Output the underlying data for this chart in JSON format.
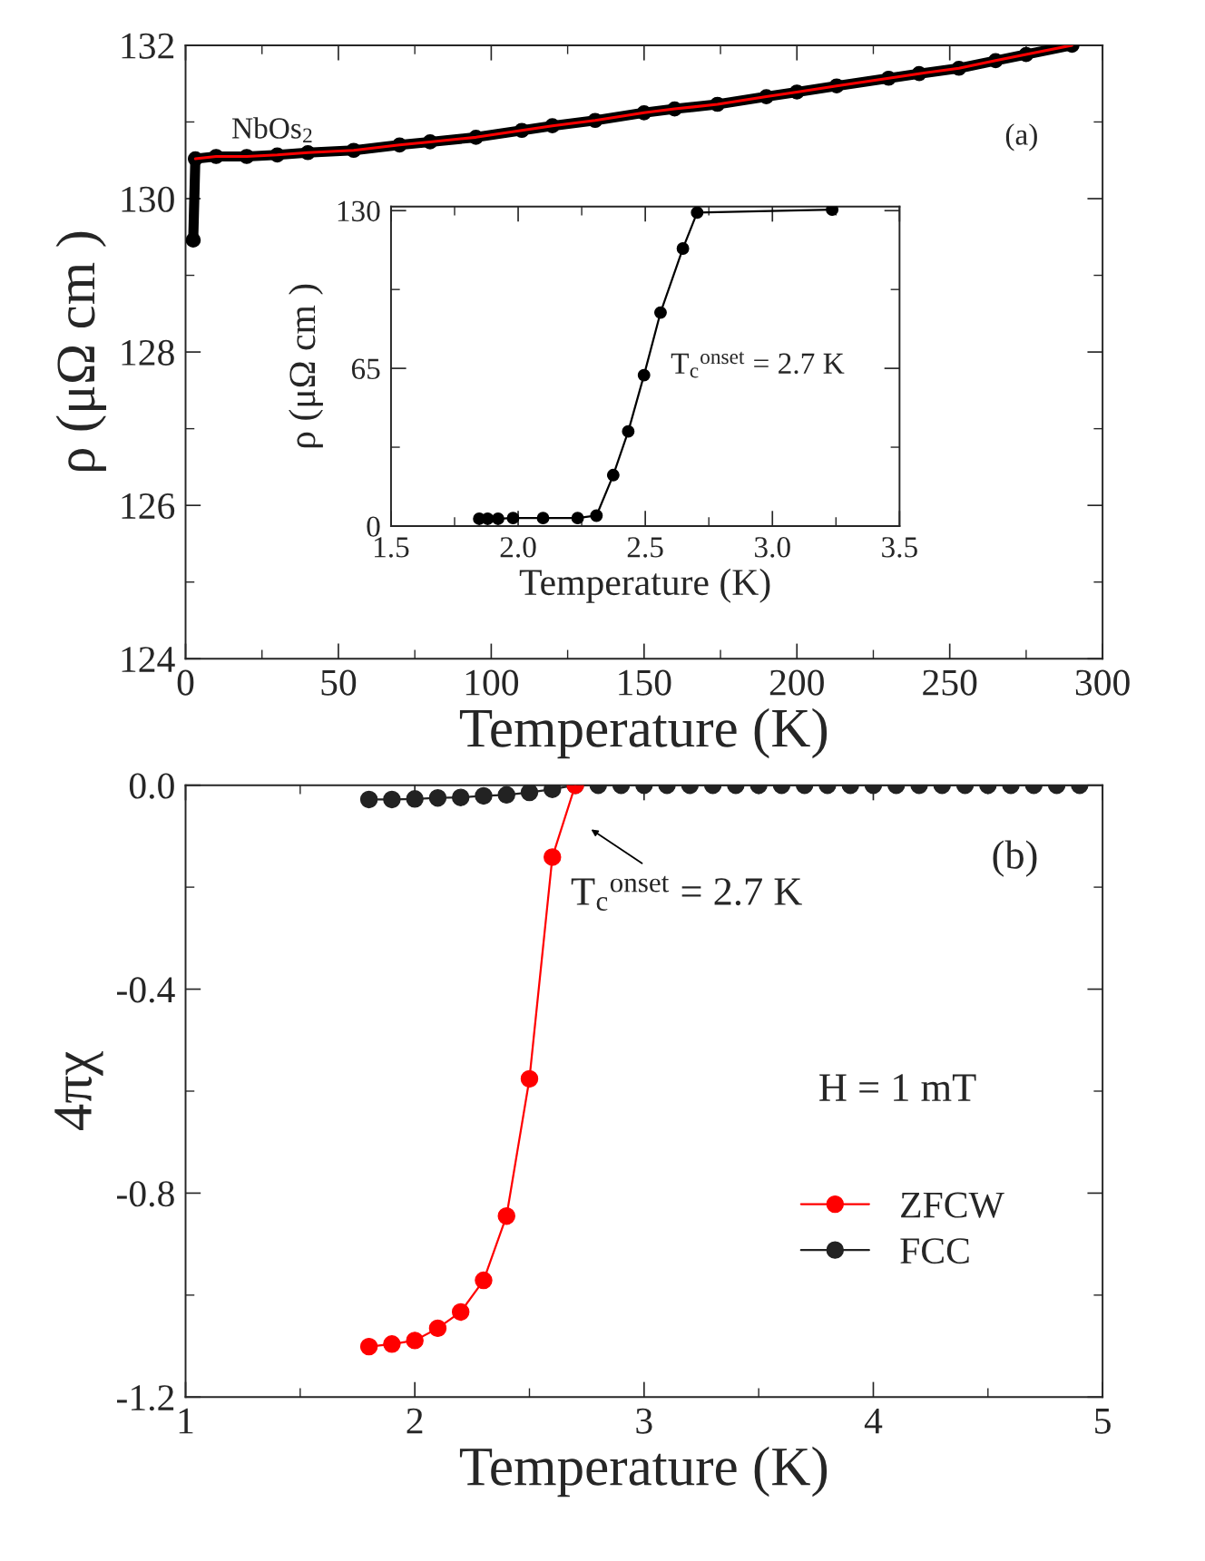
{
  "chart_data": [
    {
      "type": "line",
      "xlabel": "Temperature (K)",
      "ylabel": "ρ (μΩ cm )",
      "xlim": [
        0,
        300
      ],
      "xticks": [
        0,
        50,
        100,
        150,
        200,
        250,
        300
      ],
      "ylim": [
        124,
        132
      ],
      "yticks": [
        124,
        126,
        128,
        130,
        132
      ],
      "grid": false,
      "legend": false,
      "annotations": [
        "NbOs$_{2}$",
        "(a)"
      ],
      "series": [
        {
          "color": "#000000",
          "marker": "circle",
          "x": [
            2.5,
            3.2,
            10,
            20,
            30,
            40,
            55,
            70,
            80,
            95,
            110,
            120,
            134,
            150,
            160,
            174,
            190,
            200,
            213,
            230,
            240,
            253,
            265,
            275,
            290
          ],
          "values": [
            129.46,
            130.52,
            130.55,
            130.55,
            130.57,
            130.6,
            130.63,
            130.7,
            130.74,
            130.8,
            130.89,
            130.95,
            131.02,
            131.12,
            131.17,
            131.23,
            131.33,
            131.39,
            131.47,
            131.57,
            131.63,
            131.7,
            131.8,
            131.88,
            132.0
          ]
        },
        {
          "color": "#ff0000",
          "marker": "none",
          "x": [
            3.2,
            10,
            20,
            30,
            40,
            55,
            70,
            80,
            95,
            110,
            120,
            134,
            150,
            160,
            174,
            190,
            200,
            213,
            230,
            240,
            253,
            265,
            275,
            290
          ],
          "values": [
            130.52,
            130.55,
            130.55,
            130.57,
            130.6,
            130.63,
            130.7,
            130.74,
            130.8,
            130.89,
            130.95,
            131.02,
            131.12,
            131.17,
            131.23,
            131.33,
            131.39,
            131.47,
            131.57,
            131.63,
            131.7,
            131.8,
            131.88,
            132.0
          ]
        }
      ]
    },
    {
      "type": "line",
      "xlabel": "Temperature (K)",
      "ylabel": "ρ (μΩ cm )",
      "xlim": [
        1.5,
        3.5
      ],
      "xticks": [
        1.5,
        {
          "value": 2.0,
          "label": "2.0"
        },
        2.5,
        {
          "value": 3.0,
          "label": "3.0"
        },
        3.5
      ],
      "ylim": [
        0,
        131.7
      ],
      "yticks": [
        0,
        65,
        130
      ],
      "grid": false,
      "legend": false,
      "annotations": [
        "T$_{c}$$^{onset}$ = 2.7 K"
      ],
      "series": [
        {
          "color": "#000000",
          "marker": "circle",
          "x": [
            1.847,
            1.88,
            1.921,
            1.98,
            2.098,
            2.234,
            2.308,
            2.374,
            2.433,
            2.495,
            2.56,
            2.648,
            2.704,
            3.235
          ],
          "values": [
            3.0,
            3.0,
            3.0,
            3.3,
            3.3,
            3.3,
            4.3,
            21.0,
            39.0,
            62.2,
            88.0,
            114.4,
            129.2,
            130.4
          ]
        }
      ]
    },
    {
      "type": "line",
      "xlabel": "Temperature (K)",
      "ylabel": "4πχ",
      "xlim": [
        1,
        5
      ],
      "xticks": [
        1,
        2,
        3,
        4,
        5
      ],
      "ylim": [
        -1.2,
        0
      ],
      "yticks": [
        {
          "value": -1.2,
          "label": "-1.2"
        },
        {
          "value": -0.8,
          "label": "-0.8"
        },
        {
          "value": -0.4,
          "label": "-0.4"
        },
        {
          "value": 0,
          "label": "0.0"
        }
      ],
      "grid": false,
      "legend": "bottom right",
      "annotations": [
        "(b)",
        "T$_{c}$$^{onset}$ = 2.7 K",
        "H = 1 mT"
      ],
      "series": [
        {
          "name": "ZFCW",
          "color": "#ff0000",
          "marker": "circle",
          "x": [
            1.8,
            1.9,
            2.0,
            2.1,
            2.2,
            2.3,
            2.4,
            2.5,
            2.6,
            2.7
          ],
          "values": [
            -1.101,
            -1.096,
            -1.089,
            -1.065,
            -1.033,
            -0.971,
            -0.845,
            -0.576,
            -0.141,
            0.0
          ]
        },
        {
          "name": "FCC",
          "color": "#222222",
          "marker": "circle",
          "x": [
            1.8,
            1.9,
            2.0,
            2.1,
            2.2,
            2.3,
            2.4,
            2.5,
            2.6,
            2.7,
            2.8,
            2.9,
            3.0,
            3.1,
            3.2,
            3.3,
            3.4,
            3.5,
            3.6,
            3.7,
            3.8,
            3.9,
            4.0,
            4.1,
            4.2,
            4.3,
            4.4,
            4.5,
            4.6,
            4.7,
            4.8,
            4.9
          ],
          "values": [
            -0.028,
            -0.028,
            -0.027,
            -0.025,
            -0.024,
            -0.021,
            -0.019,
            -0.014,
            -0.008,
            0,
            0,
            0,
            0,
            0,
            0,
            0,
            0,
            0,
            0,
            0,
            0,
            0,
            0,
            0,
            0,
            0,
            0,
            0,
            0,
            0,
            0,
            0
          ]
        }
      ]
    }
  ]
}
